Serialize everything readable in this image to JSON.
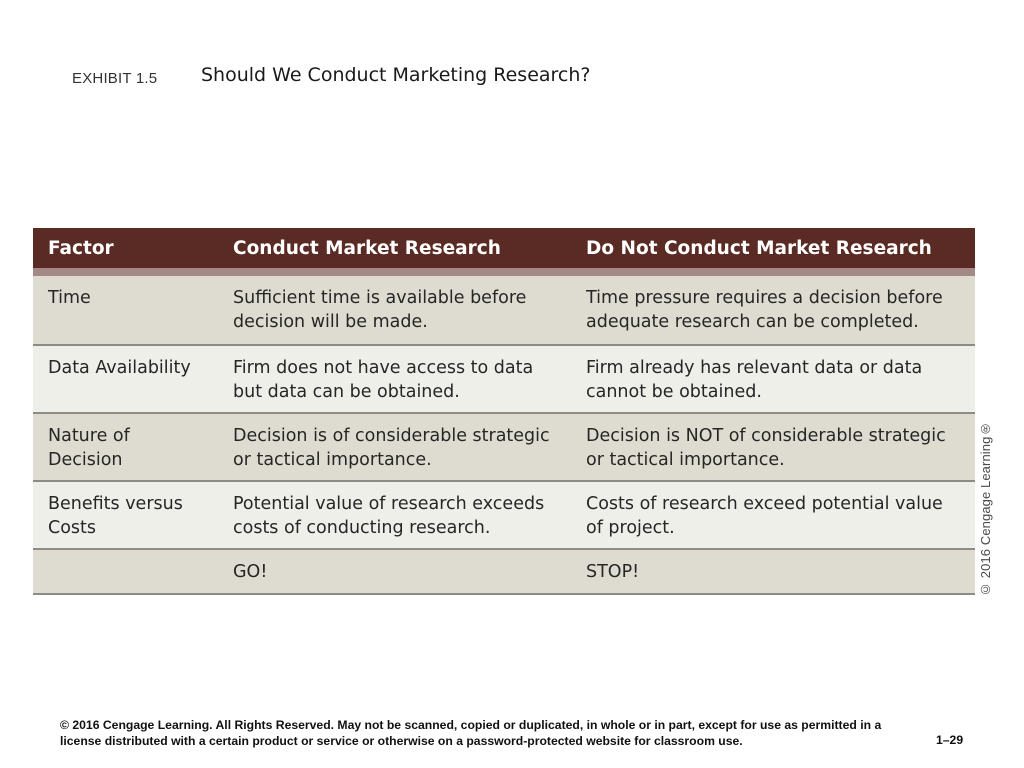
{
  "header": {
    "exhibit_label": "EXHIBIT 1.5",
    "title": "Should We Conduct Marketing Research?"
  },
  "table": {
    "columns": [
      "Factor",
      "Conduct Market Research",
      "Do Not Conduct Market Research"
    ],
    "rows": [
      [
        "Time",
        "Sufficient time is available before decision will be made.",
        "Time pressure requires a decision before adequate research can be completed."
      ],
      [
        "Data Availability",
        "Firm does not have access to data but data can be obtained.",
        "Firm already has relevant data or data cannot be obtained."
      ],
      [
        "Nature of Decision",
        "Decision is of considerable strategic or tactical importance.",
        "Decision is NOT of considerable strategic or tactical importance."
      ],
      [
        "Benefits versus Costs",
        "Potential value of research exceeds costs of conducting research.",
        "Costs of research exceed potential value of project."
      ],
      [
        "",
        "GO!",
        "STOP!"
      ]
    ]
  },
  "side_credit": "© 2016 Cengage Learning®",
  "footer": {
    "copyright": "© 2016 Cengage Learning. All Rights Reserved. May not be scanned, copied or duplicated, in whole or in part, except for use as permitted in a license distributed with a certain product or service or otherwise on a password-protected website for classroom use.",
    "page_number": "1–29"
  },
  "colors": {
    "header_bg": "#5a2a24",
    "row_dark": "#dedcd0",
    "row_light": "#efefea"
  }
}
